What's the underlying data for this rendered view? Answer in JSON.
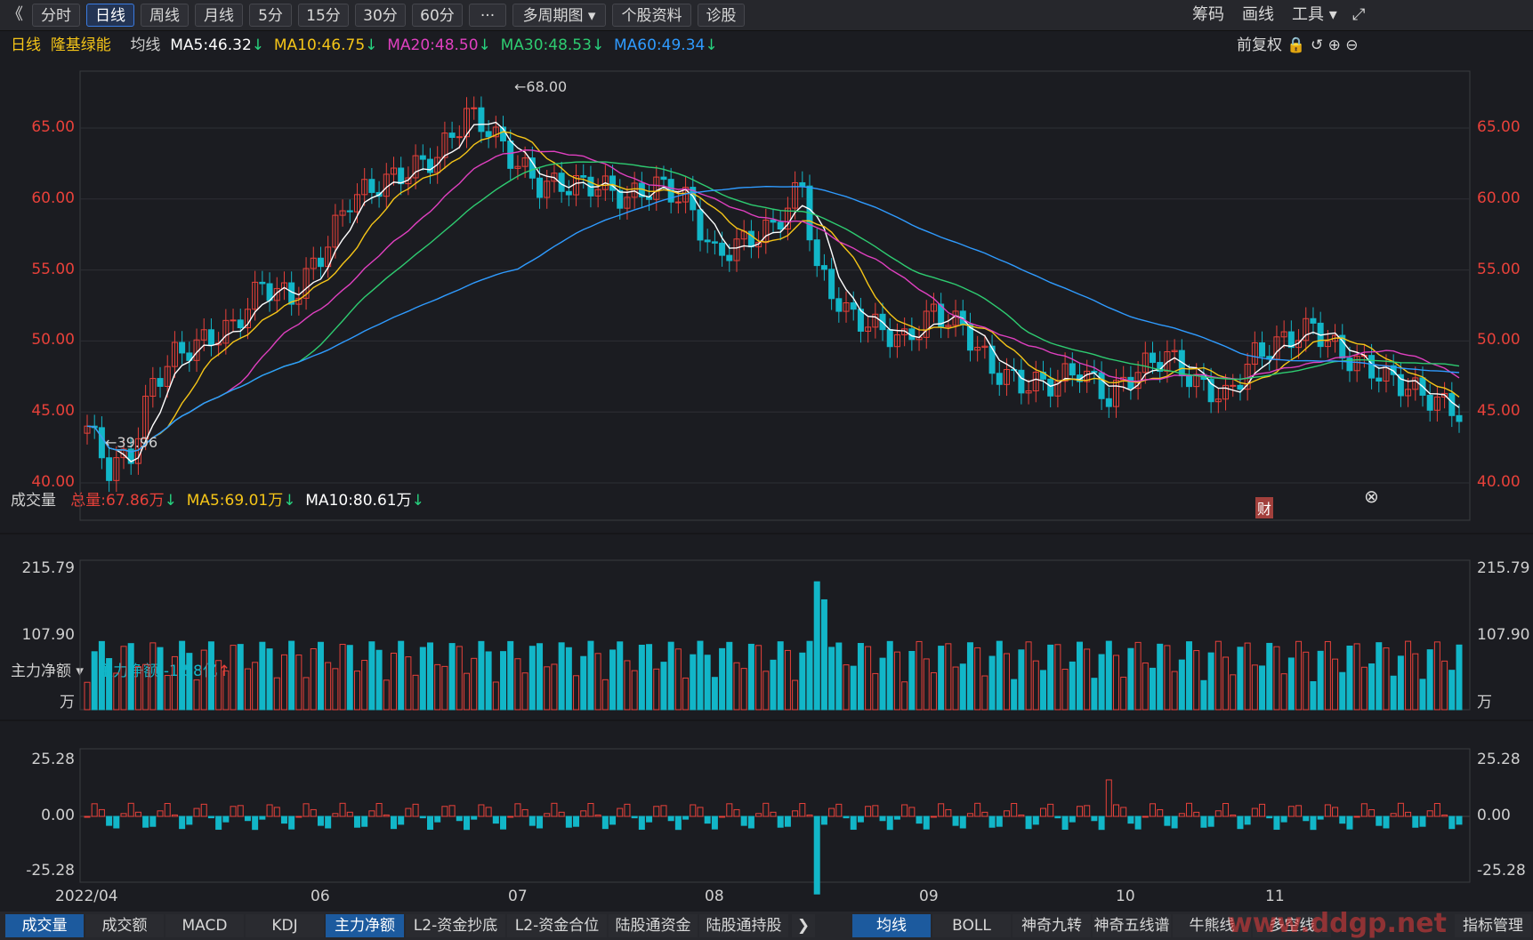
{
  "toolbar": {
    "collapse": "《",
    "items": [
      "分时",
      "日线",
      "周线",
      "月线",
      "5分",
      "15分",
      "30分",
      "60分",
      "···",
      "多周期图 ▾",
      "个股资料",
      "诊股"
    ],
    "active": "日线",
    "right": [
      "筹码",
      "画线",
      "工具 ▾",
      "⤢"
    ]
  },
  "header": {
    "period": "日线",
    "stock": "隆基绿能",
    "ma_label": "均线",
    "ma": [
      {
        "label": "MA5:46.32",
        "color": "#ffffff"
      },
      {
        "label": "MA10:46.75",
        "color": "#f5c518"
      },
      {
        "label": "MA20:48.50",
        "color": "#e040c0"
      },
      {
        "label": "MA30:48.53",
        "color": "#2ecc71"
      },
      {
        "label": "MA60:49.34",
        "color": "#2f9bff"
      }
    ],
    "fq": "前复权"
  },
  "colors": {
    "up": "#e8413a",
    "down": "#12b6c8",
    "ma5": "#ffffff",
    "ma10": "#f5c518",
    "ma20": "#e040c0",
    "ma30": "#2ecc71",
    "ma60": "#2f9bff",
    "grid": "#3a3b40"
  },
  "chart_data": [
    {
      "type": "candlestick",
      "name": "隆基绿能 日线",
      "yticks": [
        "65.00",
        "60.00",
        "55.00",
        "50.00",
        "45.00",
        "40.00"
      ],
      "ylim": [
        39,
        68.5
      ],
      "annotations": [
        "←68.00",
        "←39.96"
      ],
      "markers": [
        "财"
      ],
      "ma_last": {
        "MA5": 46.32,
        "MA10": 46.75,
        "MA20": 48.5,
        "MA30": 48.53,
        "MA60": 49.34
      }
    },
    {
      "type": "bar",
      "name": "成交量",
      "legend": [
        "成交量",
        "总量:67.86万",
        "MA5:69.01万",
        "MA10:80.61万"
      ],
      "yticks": [
        "215.79",
        "107.90",
        "万"
      ],
      "ylim": [
        0,
        215.79
      ]
    },
    {
      "type": "bar",
      "name": "主力净额",
      "legend": [
        "主力净额 ▾",
        "主力净额:-1.58亿"
      ],
      "yticks": [
        "25.28",
        "0.00",
        "-25.28"
      ],
      "ylim": [
        -25.28,
        25.28
      ]
    }
  ],
  "xaxis": [
    "2022/04",
    "06",
    "07",
    "08",
    "09",
    "10",
    "11"
  ],
  "bottom_tabs": {
    "left": [
      "成交量",
      "成交额",
      "MACD",
      "KDJ",
      "主力净额",
      "L2-资金抄底",
      "L2-资金合位",
      "陆股通资金",
      "陆股通持股"
    ],
    "left_active": [
      "成交量",
      "主力净额"
    ],
    "more": "❯",
    "right": [
      "均线",
      "BOLL",
      "神奇九转",
      "神奇五线谱",
      "牛熊线",
      "多空线"
    ],
    "right_active": "均线",
    "manage": "指标管理"
  },
  "watermark": "www.ddgp.net"
}
